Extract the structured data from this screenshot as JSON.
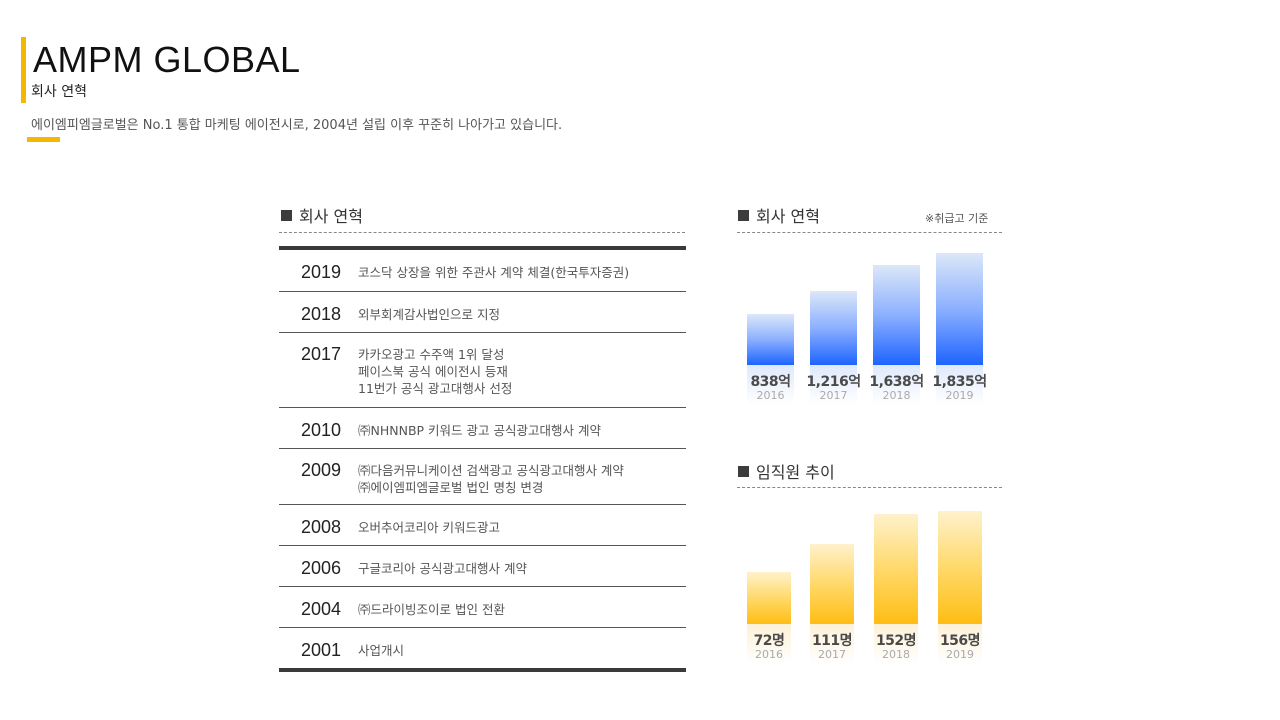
{
  "header": {
    "title": "AMPM GLOBAL",
    "subtitle": "회사 연혁",
    "description": "에이엠피엠글로벌은 No.1 통합 마케팅 에이전시로, 2004년 설립 이후 꾸준히 나아가고 있습니다."
  },
  "timeline": {
    "heading": "회사 연혁",
    "rows": [
      {
        "year": "2019",
        "events": [
          "코스닥 상장을 위한 주관사 계약 체결(한국투자증권)"
        ]
      },
      {
        "year": "2018",
        "events": [
          "외부회계감사법인으로 지정"
        ]
      },
      {
        "year": "2017",
        "events": [
          "카카오광고 수주액 1위 달성",
          "페이스북 공식 에이전시 등재",
          "11번가 공식 광고대행사 선정"
        ]
      },
      {
        "year": "2010",
        "events": [
          "㈜NHNNBP 키워드 광고 공식광고대행사 계약"
        ]
      },
      {
        "year": "2009",
        "events": [
          "㈜다음커뮤니케이션 검색광고 공식광고대행사 계약",
          "㈜에이엠피엠글로벌 법인 명칭 변경"
        ]
      },
      {
        "year": "2008",
        "events": [
          "오버추어코리아 키워드광고"
        ]
      },
      {
        "year": "2006",
        "events": [
          "구글코리아 공식광고대행사 계약"
        ]
      },
      {
        "year": "2004",
        "events": [
          "㈜드라이빙조이로 법인 전환"
        ]
      },
      {
        "year": "2001",
        "events": [
          "사업개시"
        ]
      }
    ]
  },
  "chart_data": [
    {
      "type": "bar",
      "title": "회사 연혁",
      "note": "※취급고 기준",
      "categories": [
        "2016",
        "2017",
        "2018",
        "2019"
      ],
      "values": [
        838,
        1216,
        1638,
        1835
      ],
      "value_labels": [
        "838억",
        "1,216억",
        "1,638억",
        "1,835억"
      ],
      "color": "#1e64ff",
      "ylim": [
        0,
        1835
      ]
    },
    {
      "type": "bar",
      "title": "임직원 추이",
      "categories": [
        "2016",
        "2017",
        "2018",
        "2019"
      ],
      "values": [
        72,
        111,
        152,
        156
      ],
      "value_labels": [
        "72명",
        "111명",
        "152명",
        "156명"
      ],
      "color": "#ffbd14",
      "ylim": [
        0,
        156
      ]
    }
  ]
}
